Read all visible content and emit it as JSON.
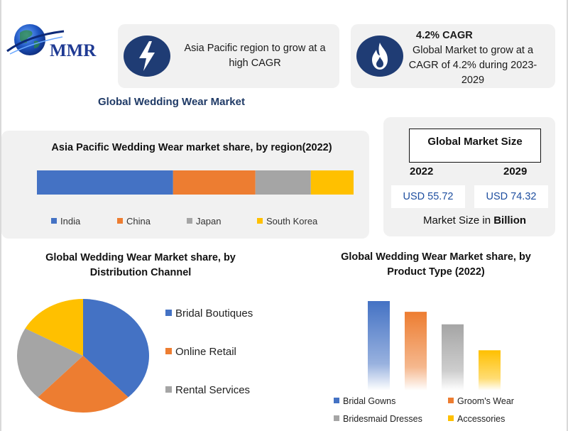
{
  "logo": {
    "text": "MMR"
  },
  "callouts": [
    {
      "icon": "lightning-bolt-icon",
      "text": "Asia Pacific region to grow at a high CAGR"
    },
    {
      "icon": "flame-icon",
      "heading": "4.2% CAGR",
      "text": "Global Market to grow at a CAGR of 4.2% during 2023-2029"
    }
  ],
  "main_title": "Global Wedding Wear Market",
  "market_size": {
    "title": "Global Market Size",
    "year_1": "2022",
    "year_2": "2029",
    "value_1": "USD 55.72",
    "value_2": "USD 74.32",
    "note_prefix": "Market Size in ",
    "note_bold": "Billion"
  },
  "colors": {
    "blue": "#4472c4",
    "orange": "#ed7d31",
    "gray": "#a5a5a5",
    "yellow": "#ffc000",
    "dark_navy": "#1f3c74"
  },
  "chart_data": [
    {
      "type": "bar",
      "orientation": "horizontal-stacked",
      "title": "Asia Pacific Wedding Wear  market share, by region(2022)",
      "series": [
        {
          "name": "India",
          "value": 43
        },
        {
          "name": "China",
          "value": 26
        },
        {
          "name": "Japan",
          "value": 17.5
        },
        {
          "name": "South Korea",
          "value": 13.5
        }
      ],
      "legend": "bottom"
    },
    {
      "type": "pie",
      "title": "Global Wedding Wear Market share, by Distribution Channel",
      "slices": [
        {
          "name": "Bridal Boutiques",
          "value": 38
        },
        {
          "name": "Online Retail",
          "value": 24
        },
        {
          "name": "Rental Services",
          "value": 21
        },
        {
          "name": "",
          "value": 17
        }
      ],
      "legend_names": [
        "Bridal Boutiques",
        "Online Retail",
        "Rental Services"
      ],
      "legend": "right"
    },
    {
      "type": "bar",
      "title": "Global Wedding Wear Market share, by Product Type (2022)",
      "categories": [
        "Bridal Gowns",
        "Groom's Wear",
        "Bridesmaid Dresses",
        "Accessories"
      ],
      "values": [
        100,
        88,
        74,
        45
      ],
      "legend": "bottom"
    }
  ]
}
